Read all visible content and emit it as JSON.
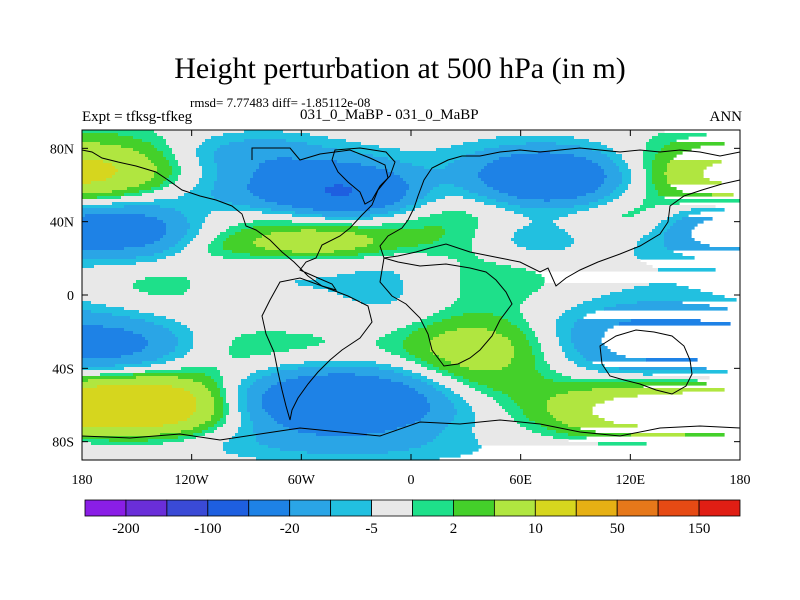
{
  "header": {
    "title": "Height perturbation at 500 hPa (in m)",
    "stats": "rmsd= 7.77483 diff= -1.85112e-08",
    "left_label": "Expt = tfksg-tfkeg",
    "center_label": "031_0_MaBP - 031_0_MaBP",
    "right_label": "ANN"
  },
  "chart_data": {
    "type": "heatmap",
    "title": "Height perturbation at 500 hPa (in m)",
    "x_range": [
      -180,
      180
    ],
    "y_range": [
      -90,
      90
    ],
    "x_ticks": [
      {
        "value": -180,
        "label": "180"
      },
      {
        "value": -120,
        "label": "120W"
      },
      {
        "value": -60,
        "label": "60W"
      },
      {
        "value": 0,
        "label": "0"
      },
      {
        "value": 60,
        "label": "60E"
      },
      {
        "value": 120,
        "label": "120E"
      },
      {
        "value": 180,
        "label": "180"
      }
    ],
    "y_ticks": [
      {
        "value": 80,
        "label": "80N"
      },
      {
        "value": 40,
        "label": "40N"
      },
      {
        "value": 0,
        "label": "0"
      },
      {
        "value": -40,
        "label": "40S"
      },
      {
        "value": -80,
        "label": "80S"
      }
    ],
    "colorbar": {
      "colors": [
        "#8a1ee6",
        "#6a2ed9",
        "#3a4ad6",
        "#1e5fe0",
        "#1e82e6",
        "#2aa5e6",
        "#22c0e0",
        "#e8e8e8",
        "#1ee08a",
        "#44d02a",
        "#b0e640",
        "#d6d61e",
        "#e6b014",
        "#e6781a",
        "#e64a14",
        "#e01e14"
      ],
      "labels": [
        {
          "label": "-200",
          "index": 1
        },
        {
          "label": "-100",
          "index": 3
        },
        {
          "label": "-20",
          "index": 5
        },
        {
          "label": "-5",
          "index": 7
        },
        {
          "label": "2",
          "index": 9
        },
        {
          "label": "10",
          "index": 11
        },
        {
          "label": "50",
          "index": 13
        },
        {
          "label": "150",
          "index": 15
        }
      ]
    },
    "anomalies": [
      {
        "lon": -150,
        "lat": 35,
        "sx": 22,
        "sy": 11,
        "amp": -28
      },
      {
        "lon": -155,
        "lat": -28,
        "sx": 28,
        "sy": 11,
        "amp": -22
      },
      {
        "lon": -145,
        "lat": -60,
        "sx": 38,
        "sy": 12,
        "amp": 38
      },
      {
        "lon": -160,
        "lat": 68,
        "sx": 35,
        "sy": 12,
        "amp": 12
      },
      {
        "lon": -130,
        "lat": 10,
        "sx": 35,
        "sy": 16,
        "amp": 7
      },
      {
        "lon": -85,
        "lat": 78,
        "sx": 30,
        "sy": 8,
        "amp": -12
      },
      {
        "lon": -75,
        "lat": 58,
        "sx": 38,
        "sy": 13,
        "amp": -18
      },
      {
        "lon": -35,
        "lat": 56,
        "sx": 25,
        "sy": 10,
        "amp": -42
      },
      {
        "lon": -60,
        "lat": 45,
        "sx": 42,
        "sy": 5,
        "amp": 6
      },
      {
        "lon": -80,
        "lat": 12,
        "sx": 38,
        "sy": 18,
        "amp": -7
      },
      {
        "lon": -105,
        "lat": -30,
        "sx": 50,
        "sy": 11,
        "amp": 6
      },
      {
        "lon": -40,
        "lat": -58,
        "sx": 42,
        "sy": 12,
        "amp": -48
      },
      {
        "lon": -80,
        "lat": -80,
        "sx": 70,
        "sy": 8,
        "amp": -6
      },
      {
        "lon": -50,
        "lat": 33,
        "sx": 40,
        "sy": 9,
        "amp": 18
      },
      {
        "lon": -60,
        "lat": 26,
        "sx": 40,
        "sy": 5,
        "amp": 6
      },
      {
        "lon": -10,
        "lat": 0,
        "sx": 22,
        "sy": 40,
        "amp": -6
      },
      {
        "lon": 20,
        "lat": 52,
        "sx": 35,
        "sy": 14,
        "amp": 8
      },
      {
        "lon": 65,
        "lat": 65,
        "sx": 42,
        "sy": 13,
        "amp": -18
      },
      {
        "lon": 75,
        "lat": 64,
        "sx": 24,
        "sy": 9,
        "amp": -32
      },
      {
        "lon": 65,
        "lat": 30,
        "sx": 20,
        "sy": 8,
        "amp": -8
      },
      {
        "lon": 60,
        "lat": 12,
        "sx": 40,
        "sy": 16,
        "amp": 7
      },
      {
        "lon": 40,
        "lat": -28,
        "sx": 42,
        "sy": 12,
        "amp": 18
      },
      {
        "lon": 30,
        "lat": -50,
        "sx": 35,
        "sy": 10,
        "amp": 8
      },
      {
        "lon": 110,
        "lat": 20,
        "sx": 55,
        "sy": 16,
        "amp": -6
      },
      {
        "lon": 120,
        "lat": 42,
        "sx": 22,
        "sy": 8,
        "amp": 6
      },
      {
        "lon": 168,
        "lat": 36,
        "sx": 22,
        "sy": 10,
        "amp": -24
      },
      {
        "lon": 165,
        "lat": 65,
        "sx": 35,
        "sy": 13,
        "amp": 16
      },
      {
        "lon": 130,
        "lat": -25,
        "sx": 45,
        "sy": 14,
        "amp": -30
      },
      {
        "lon": 130,
        "lat": -63,
        "sx": 38,
        "sy": 11,
        "amp": 28
      },
      {
        "lon": 150,
        "lat": -82,
        "sx": 40,
        "sy": 8,
        "amp": -6
      },
      {
        "lon": -10,
        "lat": -85,
        "sx": 60,
        "sy": 6,
        "amp": -4
      }
    ]
  }
}
